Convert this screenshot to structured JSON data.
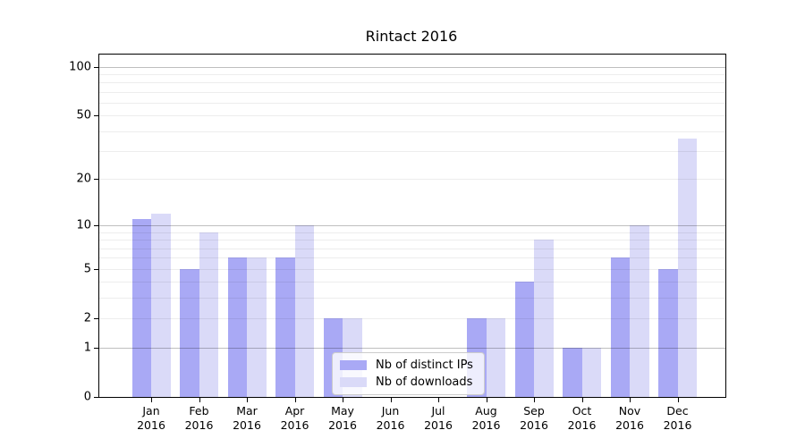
{
  "chart_data": {
    "type": "bar",
    "title": "Rintact 2016",
    "year": "2016",
    "categories": [
      "Jan",
      "Feb",
      "Mar",
      "Apr",
      "May",
      "Jun",
      "Jul",
      "Aug",
      "Sep",
      "Oct",
      "Nov",
      "Dec"
    ],
    "series": [
      {
        "name": "Nb of distinct IPs",
        "color": "#a9a9f5",
        "values": [
          11,
          5,
          6,
          6,
          2,
          0,
          0,
          2,
          4,
          1,
          6,
          5
        ]
      },
      {
        "name": "Nb of downloads",
        "color": "#dadaf8",
        "values": [
          12,
          9,
          6,
          10,
          2,
          0,
          0,
          2,
          8,
          1,
          10,
          36
        ]
      }
    ],
    "yscale": "log1p",
    "ylim": [
      0,
      118
    ],
    "y_ticks": [
      0,
      1,
      2,
      5,
      10,
      20,
      50,
      100
    ],
    "grid_minor_values": [
      2,
      3,
      4,
      5,
      6,
      7,
      8,
      9,
      20,
      30,
      40,
      50,
      60,
      70,
      80,
      90
    ],
    "grid_major_values": [
      1,
      10,
      100
    ],
    "grid": "horizontal",
    "legend_position": "lower center",
    "background_color": "#ffffff",
    "axis_color": "#000000"
  }
}
